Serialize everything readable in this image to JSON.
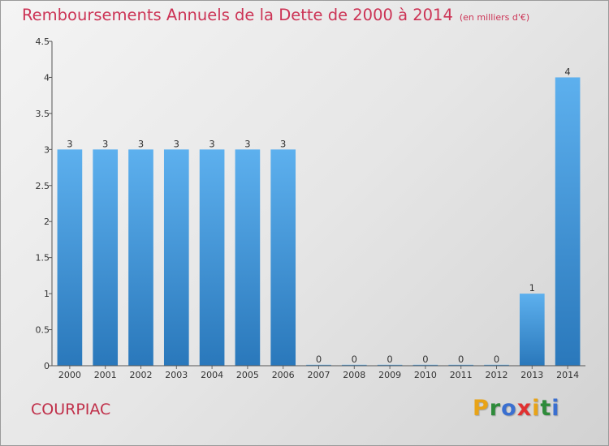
{
  "chart_data": {
    "type": "bar",
    "title": "Remboursements Annuels de la Dette de 2000 à 2014",
    "subtitle": "(en milliers d'€)",
    "categories": [
      "2000",
      "2001",
      "2002",
      "2003",
      "2004",
      "2005",
      "2006",
      "2007",
      "2008",
      "2009",
      "2010",
      "2011",
      "2012",
      "2013",
      "2014"
    ],
    "values": [
      3,
      3,
      3,
      3,
      3,
      3,
      3,
      0,
      0,
      0,
      0,
      0,
      0,
      1,
      4
    ],
    "data_labels": [
      "3",
      "3",
      "3",
      "3",
      "3",
      "3",
      "3",
      "0",
      "0",
      "0",
      "0",
      "0",
      "0",
      "1",
      "4"
    ],
    "ylim": [
      0,
      4.5
    ],
    "yticks": [
      0,
      0.5,
      1,
      1.5,
      2,
      2.5,
      3,
      3.5,
      4,
      4.5
    ],
    "ytick_labels": [
      "0",
      "0.5",
      "1",
      "1.5",
      "2",
      "2.5",
      "3",
      "3.5",
      "4",
      "4.5"
    ],
    "xlabel": "",
    "ylabel": "",
    "grid": false,
    "legend": "none",
    "bar_color": "#4a9ee0"
  },
  "commune": "COURPIAC",
  "logo": {
    "letters": [
      "P",
      "r",
      "o",
      "x",
      "i",
      "t",
      "i"
    ],
    "colors": [
      "#e8a317",
      "#2e8b3a",
      "#3a6fd0",
      "#e03030",
      "#e8a317",
      "#2e8b3a",
      "#3a6fd0"
    ]
  }
}
